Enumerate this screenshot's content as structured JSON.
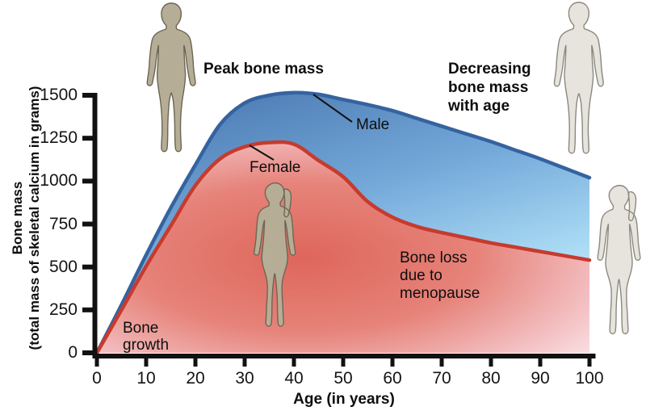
{
  "axes": {
    "y_title_line1": "Bone mass",
    "y_title_line2": "(total mass of skeletal calcium in grams)",
    "x_title": "Age (in years)"
  },
  "labels": {
    "peak_bone_mass": "Peak bone mass",
    "decreasing_bone_mass": "Decreasing bone mass with age",
    "male": "Male",
    "female": "Female",
    "bone_growth": "Bone growth",
    "bone_loss": "Bone loss due to menopause"
  },
  "colors": {
    "male_line": "#35639f",
    "female_line": "#c63b2e",
    "axis": "#111111",
    "tan_figure_fill": "#b6ad96",
    "tan_figure_outline": "#6b6552",
    "gray_figure_fill": "#e6e4dc",
    "gray_figure_outline": "#8b897f"
  },
  "chart_data": {
    "type": "area",
    "title": "",
    "xlabel": "Age (in years)",
    "ylabel": "Bone mass (total mass of skeletal calcium in grams)",
    "xlim": [
      0,
      100
    ],
    "ylim": [
      0,
      1500
    ],
    "x_ticks": [
      0,
      10,
      20,
      30,
      40,
      50,
      60,
      70,
      80,
      90,
      100
    ],
    "y_ticks": [
      0,
      250,
      500,
      750,
      1000,
      1250,
      1500
    ],
    "grid": false,
    "legend_position": "inline-annotations",
    "x": [
      0,
      5,
      10,
      15,
      20,
      25,
      30,
      35,
      40,
      45,
      50,
      55,
      60,
      65,
      70,
      75,
      80,
      85,
      90,
      95,
      100
    ],
    "series": [
      {
        "name": "Male",
        "color": "#35639f",
        "values": [
          0,
          280,
          570,
          845,
          1095,
          1330,
          1455,
          1500,
          1515,
          1505,
          1475,
          1445,
          1410,
          1365,
          1320,
          1275,
          1230,
          1180,
          1130,
          1075,
          1020
        ]
      },
      {
        "name": "Female",
        "color": "#c63b2e",
        "values": [
          0,
          250,
          505,
          740,
          975,
          1130,
          1200,
          1225,
          1215,
          1120,
          1025,
          880,
          790,
          735,
          700,
          670,
          640,
          615,
          590,
          565,
          540
        ]
      }
    ],
    "annotations": [
      "Peak bone mass",
      "Decreasing bone mass with age",
      "Male",
      "Female",
      "Bone growth",
      "Bone loss due to menopause"
    ]
  }
}
